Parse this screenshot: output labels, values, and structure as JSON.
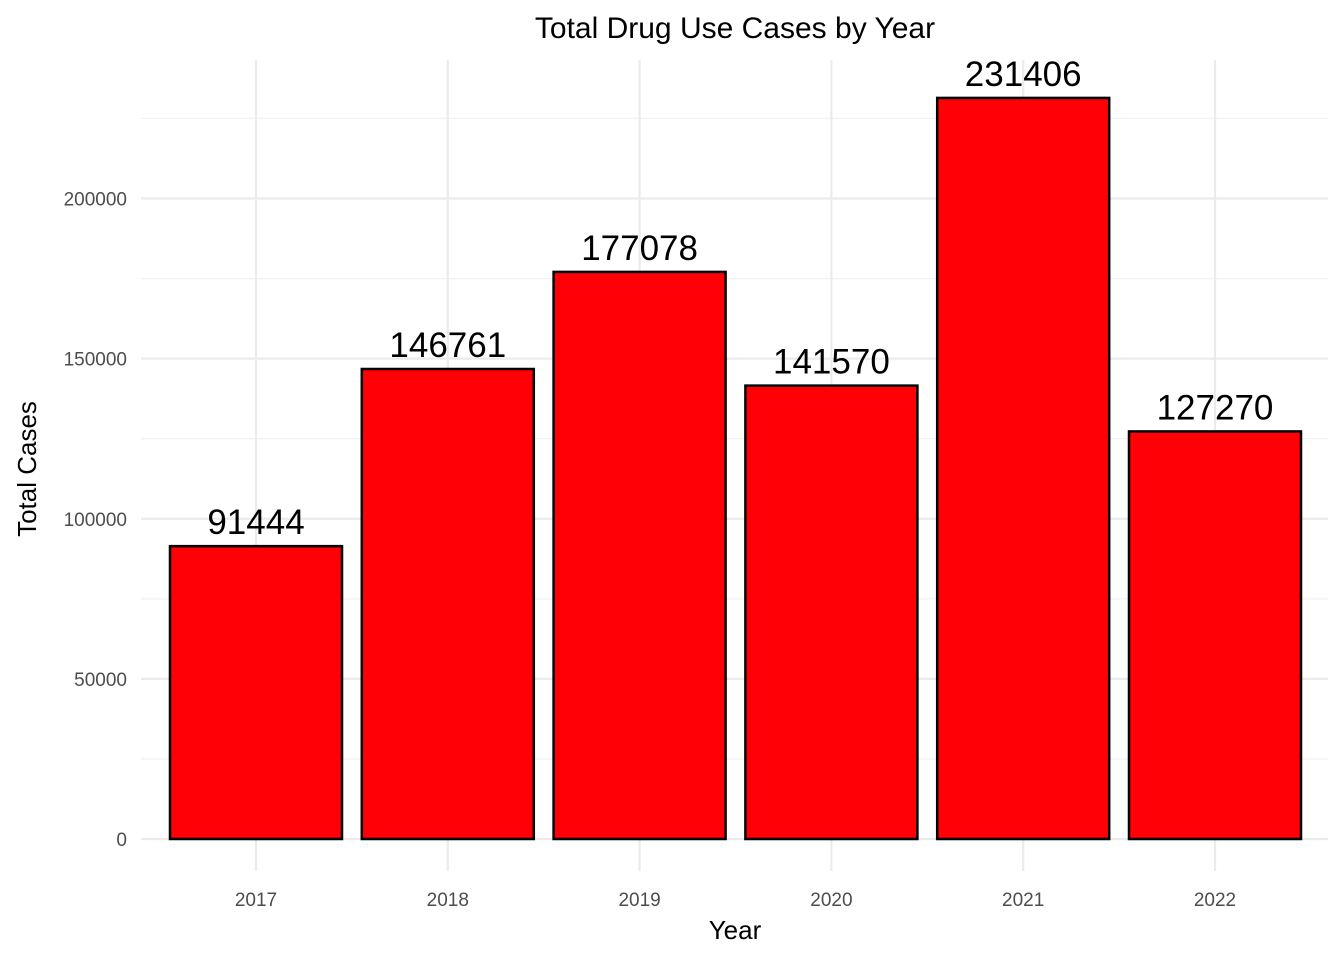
{
  "chart_data": {
    "type": "bar",
    "title": "Total Drug Use Cases by Year",
    "xlabel": "Year",
    "ylabel": "Total Cases",
    "categories": [
      "2017",
      "2018",
      "2019",
      "2020",
      "2021",
      "2022"
    ],
    "values": [
      91444,
      146761,
      177078,
      141570,
      231406,
      127270
    ],
    "data_labels": [
      "91444",
      "146761",
      "177078",
      "141570",
      "231406",
      "127270"
    ],
    "ylim": [
      0,
      240000
    ],
    "y_ticks": [
      0,
      50000,
      100000,
      150000,
      200000
    ],
    "y_tick_labels": [
      "0",
      "50000",
      "100000",
      "150000",
      "200000"
    ],
    "grid": true,
    "legend": "none",
    "bar_color": "#fe0006",
    "bar_outline_color": "#000000"
  }
}
